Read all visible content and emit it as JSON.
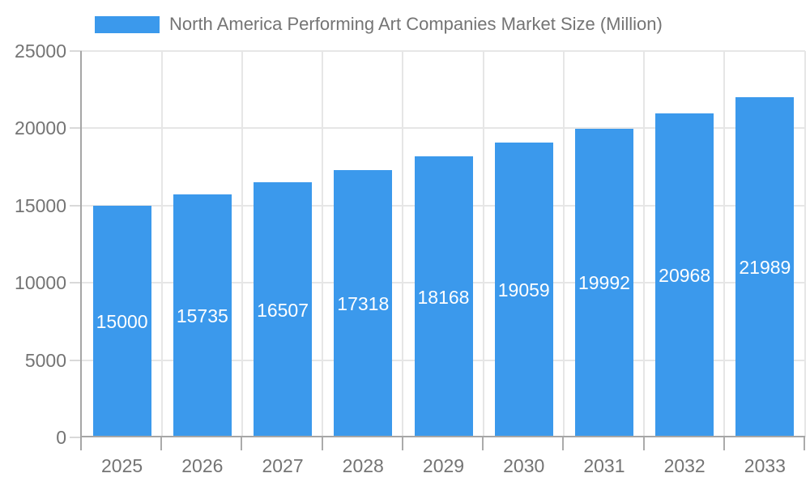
{
  "legend": {
    "label": "North America Performing Art Companies Market Size (Million)"
  },
  "colors": {
    "bar": "#3b99ec",
    "bar_label": "#ffffff",
    "axis_line": "#a6a6a6",
    "x_tick": "#ababab",
    "y_tick": "#d9d9d9",
    "gridline": "#e6e6e6",
    "tick_label": "#747474",
    "legend_text": "#747474",
    "background": "#ffffff"
  },
  "chart_data": {
    "type": "bar",
    "title": "North America Performing Art Companies Market Size (Million)",
    "categories": [
      "2025",
      "2026",
      "2027",
      "2028",
      "2029",
      "2030",
      "2031",
      "2032",
      "2033"
    ],
    "values": [
      15000,
      15735,
      16507,
      17318,
      18168,
      19059,
      19992,
      20968,
      21989
    ],
    "series": [
      {
        "name": "North America Performing Art Companies Market Size (Million)",
        "values": [
          15000,
          15735,
          16507,
          17318,
          18168,
          19059,
          19992,
          20968,
          21989
        ]
      }
    ],
    "xlabel": "",
    "ylabel": "",
    "ylim": [
      0,
      25000
    ],
    "yticks": [
      0,
      5000,
      10000,
      15000,
      20000,
      25000
    ],
    "grid": true,
    "grid_vertical": true,
    "legend_position": "top-left",
    "bar_value_labels_inside": true
  }
}
